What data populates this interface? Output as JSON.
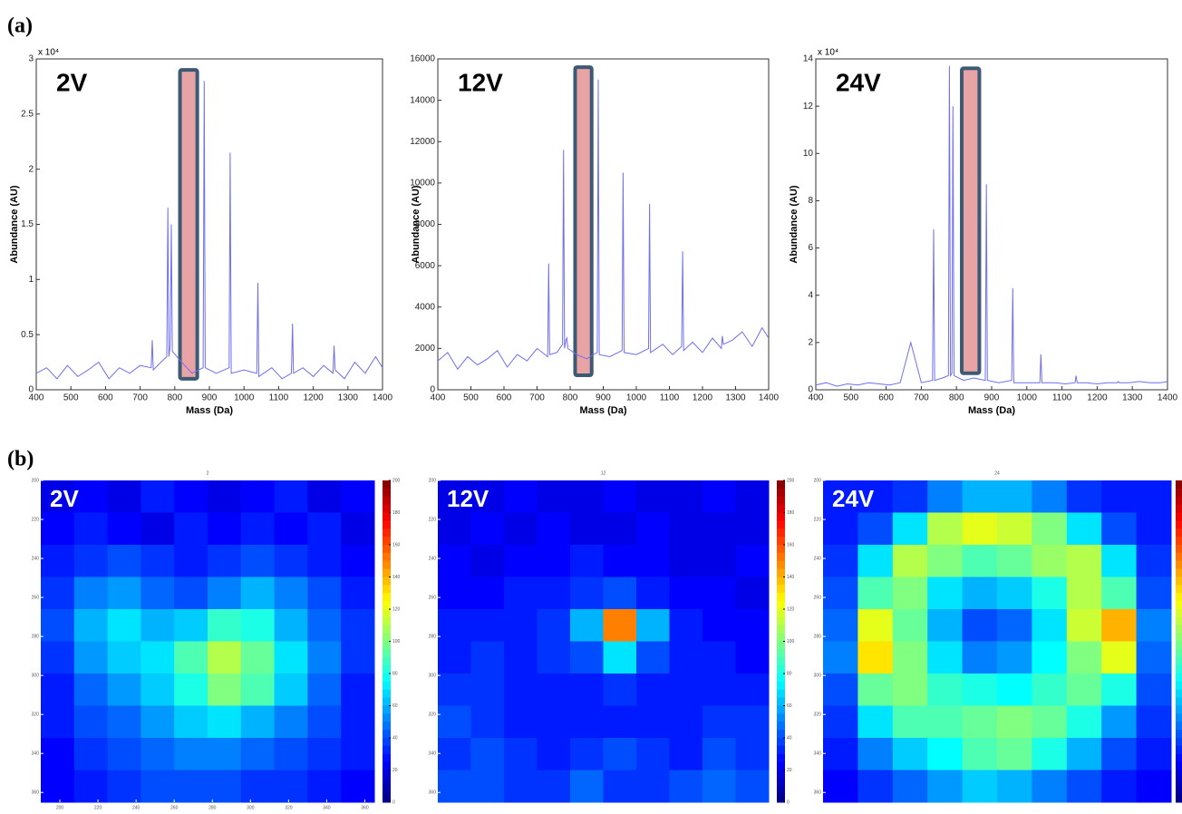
{
  "panel_labels": [
    "(a)",
    "(b)"
  ],
  "chart_data": [
    {
      "type": "line",
      "annotation": "2V",
      "x_label": "Mass (Da)",
      "y_label": "Abundance (AU)",
      "y_scale_label": "x 10⁴",
      "color": "#6f6ff0",
      "xlim": [
        400,
        1400
      ],
      "xticks": [
        400,
        500,
        600,
        700,
        800,
        900,
        1000,
        1100,
        1200,
        1300,
        1400
      ],
      "ylim": [
        0,
        3
      ],
      "yticks": [
        0,
        0.5,
        1,
        1.5,
        2,
        2.5,
        3
      ],
      "x": [
        400,
        430,
        460,
        490,
        520,
        550,
        580,
        610,
        640,
        670,
        700,
        732,
        735,
        738,
        760,
        777,
        780,
        783,
        787,
        790,
        793,
        820,
        850,
        882,
        885,
        888,
        920,
        957,
        960,
        963,
        1000,
        1037,
        1040,
        1043,
        1080,
        1110,
        1137,
        1140,
        1143,
        1170,
        1200,
        1230,
        1257,
        1260,
        1263,
        1290,
        1320,
        1350,
        1380,
        1400
      ],
      "values": [
        0.15,
        0.2,
        0.1,
        0.22,
        0.12,
        0.18,
        0.25,
        0.1,
        0.2,
        0.15,
        0.22,
        0.2,
        0.45,
        0.18,
        0.25,
        0.3,
        1.65,
        0.3,
        0.4,
        1.5,
        0.35,
        0.25,
        0.15,
        0.2,
        2.8,
        0.2,
        0.15,
        0.2,
        2.15,
        0.15,
        0.18,
        0.15,
        0.97,
        0.12,
        0.2,
        0.1,
        0.15,
        0.6,
        0.15,
        0.2,
        0.12,
        0.22,
        0.15,
        0.4,
        0.18,
        0.1,
        0.25,
        0.15,
        0.3,
        0.2
      ],
      "highlight": {
        "xlim": [
          815,
          865
        ],
        "ylim": [
          0.1,
          2.9
        ],
        "fill": "#e8a4a4",
        "stroke": "#3d5a75"
      }
    },
    {
      "type": "line",
      "annotation": "12V",
      "x_label": "Mass (Da)",
      "y_label": "Abundance (AU)",
      "color": "#6f6ff0",
      "xlim": [
        400,
        1400
      ],
      "xticks": [
        400,
        500,
        600,
        700,
        800,
        900,
        1000,
        1100,
        1200,
        1300,
        1400
      ],
      "ylim": [
        0,
        16000
      ],
      "yticks": [
        0,
        2000,
        4000,
        6000,
        8000,
        10000,
        12000,
        14000,
        16000
      ],
      "x": [
        400,
        430,
        460,
        490,
        520,
        550,
        580,
        610,
        640,
        670,
        700,
        732,
        735,
        738,
        760,
        777,
        780,
        783,
        787,
        790,
        793,
        820,
        850,
        882,
        885,
        888,
        920,
        957,
        960,
        963,
        1000,
        1037,
        1040,
        1043,
        1080,
        1110,
        1137,
        1140,
        1143,
        1170,
        1200,
        1230,
        1257,
        1260,
        1263,
        1290,
        1320,
        1350,
        1380,
        1400
      ],
      "values": [
        1400,
        1800,
        1000,
        1600,
        1200,
        1500,
        1900,
        1100,
        1700,
        1400,
        2000,
        1600,
        6100,
        1700,
        1800,
        2200,
        11600,
        2000,
        2400,
        2500,
        2000,
        1700,
        1500,
        1800,
        15000,
        1700,
        1600,
        1900,
        10500,
        1800,
        1700,
        2000,
        9000,
        1800,
        2200,
        1700,
        2100,
        6700,
        1900,
        2300,
        1800,
        2500,
        2000,
        2600,
        2200,
        2400,
        2800,
        2100,
        3000,
        2500
      ],
      "highlight": {
        "xlim": [
          815,
          865
        ],
        "ylim": [
          700,
          15600
        ],
        "fill": "#e8a4a4",
        "stroke": "#3d5a75"
      }
    },
    {
      "type": "line",
      "annotation": "24V",
      "x_label": "Mass (Da)",
      "y_label": "Abundance (AU)",
      "y_scale_label": "x 10⁴",
      "color": "#6f6ff0",
      "xlim": [
        400,
        1400
      ],
      "xticks": [
        400,
        500,
        600,
        700,
        800,
        900,
        1000,
        1100,
        1200,
        1300,
        1400
      ],
      "ylim": [
        0,
        14
      ],
      "yticks": [
        0,
        2,
        4,
        6,
        8,
        10,
        12,
        14
      ],
      "x": [
        400,
        430,
        460,
        490,
        520,
        550,
        580,
        610,
        640,
        670,
        700,
        732,
        735,
        738,
        760,
        777,
        780,
        783,
        787,
        790,
        793,
        820,
        850,
        882,
        885,
        888,
        920,
        957,
        960,
        963,
        1000,
        1037,
        1040,
        1043,
        1080,
        1110,
        1137,
        1140,
        1143,
        1170,
        1200,
        1230,
        1257,
        1260,
        1263,
        1290,
        1320,
        1350,
        1380,
        1400
      ],
      "values": [
        0.2,
        0.3,
        0.15,
        0.25,
        0.2,
        0.3,
        0.25,
        0.2,
        0.3,
        2.0,
        0.3,
        0.4,
        6.8,
        0.4,
        0.5,
        0.6,
        13.7,
        0.6,
        0.7,
        12.0,
        0.6,
        0.4,
        0.5,
        0.4,
        8.7,
        0.4,
        0.3,
        0.4,
        4.3,
        0.3,
        0.3,
        0.3,
        1.5,
        0.3,
        0.3,
        0.25,
        0.3,
        0.6,
        0.3,
        0.3,
        0.25,
        0.3,
        0.3,
        0.35,
        0.3,
        0.3,
        0.35,
        0.3,
        0.3,
        0.35
      ],
      "highlight": {
        "xlim": [
          815,
          865
        ],
        "ylim": [
          0.7,
          13.6
        ],
        "fill": "#e8a4a4",
        "stroke": "#3d5a75"
      }
    },
    {
      "type": "heatmap",
      "title": "2",
      "annotation": "2V",
      "colormap": "jet",
      "xlim": [
        190,
        365
      ],
      "ylim": [
        200,
        365
      ],
      "xticks": [
        200,
        220,
        240,
        260,
        280,
        300,
        320,
        340,
        360
      ],
      "yticks": [
        200,
        220,
        240,
        260,
        280,
        300,
        320,
        340,
        360
      ],
      "zlim": [
        0,
        200
      ],
      "zticks": [
        0,
        20,
        40,
        60,
        80,
        100,
        120,
        140,
        160,
        180,
        200
      ],
      "values": [
        [
          20,
          25,
          20,
          30,
          25,
          20,
          25,
          30,
          20,
          25
        ],
        [
          25,
          30,
          25,
          20,
          30,
          25,
          30,
          25,
          30,
          20
        ],
        [
          30,
          35,
          40,
          35,
          30,
          35,
          40,
          35,
          30,
          25
        ],
        [
          35,
          50,
          55,
          45,
          40,
          50,
          60,
          50,
          40,
          30
        ],
        [
          40,
          60,
          70,
          60,
          65,
          85,
          80,
          60,
          45,
          35
        ],
        [
          35,
          55,
          65,
          70,
          90,
          110,
          95,
          70,
          50,
          35
        ],
        [
          30,
          45,
          55,
          65,
          80,
          100,
          90,
          65,
          45,
          30
        ],
        [
          30,
          40,
          45,
          55,
          65,
          70,
          60,
          50,
          40,
          30
        ],
        [
          25,
          35,
          40,
          45,
          50,
          50,
          45,
          40,
          35,
          30
        ],
        [
          25,
          30,
          35,
          40,
          40,
          40,
          35,
          35,
          30,
          25
        ]
      ]
    },
    {
      "type": "heatmap",
      "title": "12",
      "annotation": "12V",
      "colormap": "jet",
      "xlim": [
        190,
        365
      ],
      "ylim": [
        200,
        365
      ],
      "yticks": [
        200,
        220,
        240,
        260,
        280,
        300,
        320,
        340,
        360
      ],
      "zlim": [
        0,
        200
      ],
      "zticks": [
        0,
        20,
        40,
        60,
        80,
        100,
        120,
        140,
        160,
        180,
        200
      ],
      "values": [
        [
          20,
          20,
          25,
          20,
          20,
          25,
          20,
          20,
          25,
          20
        ],
        [
          20,
          25,
          20,
          25,
          20,
          20,
          25,
          20,
          20,
          20
        ],
        [
          25,
          20,
          25,
          25,
          30,
          25,
          25,
          20,
          20,
          25
        ],
        [
          25,
          25,
          30,
          30,
          35,
          40,
          30,
          25,
          25,
          20
        ],
        [
          30,
          30,
          30,
          35,
          60,
          150,
          60,
          30,
          25,
          25
        ],
        [
          30,
          35,
          30,
          35,
          40,
          70,
          40,
          30,
          30,
          25
        ],
        [
          35,
          35,
          30,
          30,
          30,
          35,
          30,
          30,
          30,
          30
        ],
        [
          40,
          35,
          30,
          30,
          30,
          30,
          30,
          30,
          35,
          35
        ],
        [
          35,
          40,
          35,
          30,
          35,
          40,
          35,
          30,
          40,
          35
        ],
        [
          40,
          40,
          35,
          35,
          45,
          35,
          35,
          40,
          45,
          40
        ]
      ]
    },
    {
      "type": "heatmap",
      "title": "24",
      "annotation": "24V",
      "colormap": "jet",
      "xlim": [
        190,
        365
      ],
      "ylim": [
        200,
        365
      ],
      "yticks": [
        200,
        220,
        240,
        260,
        280,
        300,
        320,
        340,
        360
      ],
      "zlim": [
        0,
        200
      ],
      "values": [
        [
          30,
          30,
          35,
          50,
          60,
          60,
          50,
          35,
          30,
          30
        ],
        [
          30,
          40,
          70,
          110,
          120,
          115,
          100,
          70,
          40,
          30
        ],
        [
          35,
          70,
          110,
          100,
          90,
          95,
          105,
          110,
          70,
          35
        ],
        [
          40,
          90,
          100,
          70,
          60,
          65,
          80,
          110,
          90,
          40
        ],
        [
          45,
          120,
          95,
          60,
          40,
          45,
          70,
          115,
          140,
          50
        ],
        [
          50,
          130,
          100,
          70,
          50,
          55,
          75,
          100,
          120,
          45
        ],
        [
          40,
          95,
          100,
          85,
          80,
          75,
          85,
          95,
          80,
          40
        ],
        [
          35,
          70,
          90,
          90,
          95,
          100,
          95,
          80,
          55,
          35
        ],
        [
          30,
          50,
          65,
          75,
          90,
          95,
          80,
          60,
          40,
          30
        ],
        [
          25,
          35,
          45,
          55,
          65,
          60,
          50,
          40,
          30,
          25
        ]
      ]
    }
  ]
}
